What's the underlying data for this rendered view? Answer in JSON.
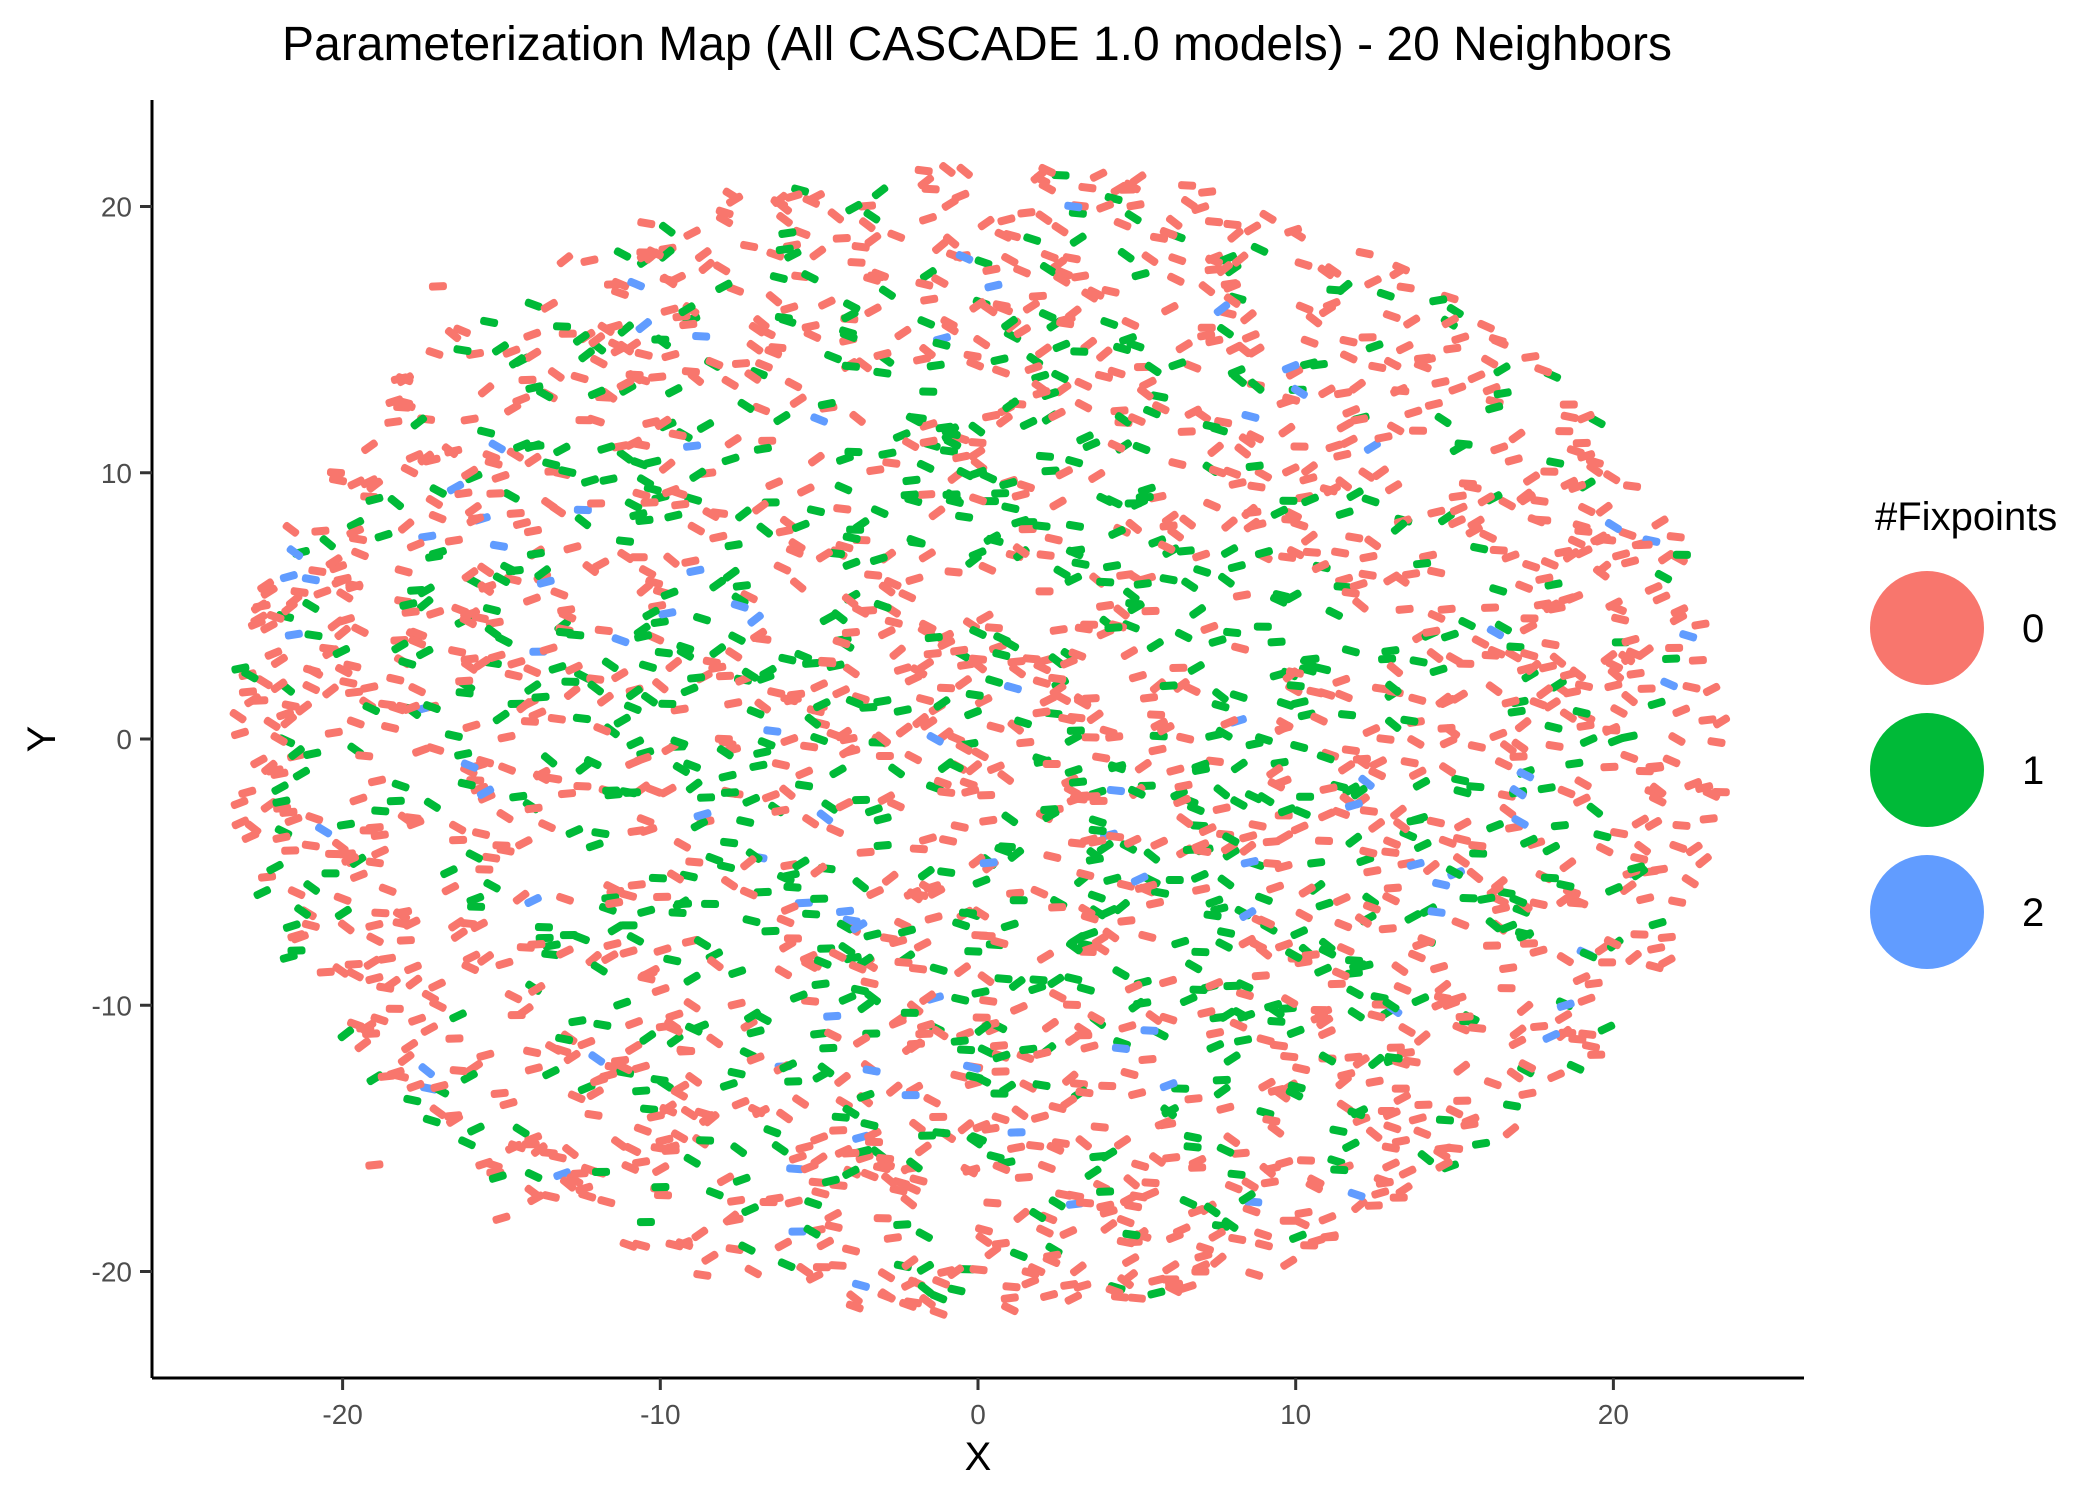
{
  "chart_data": {
    "type": "scatter",
    "title": "Parameterization Map (All CASCADE 1.0 models) - 20 Neighbors",
    "xlabel": "X",
    "ylabel": "Y",
    "xlim": [
      -26,
      26
    ],
    "ylim": [
      -24,
      24
    ],
    "x_ticks": [
      -20,
      -10,
      0,
      10,
      20
    ],
    "y_ticks": [
      -20,
      -10,
      0,
      10,
      20
    ],
    "x_tick_labels": [
      "-20",
      "-10",
      "0",
      "10",
      "20"
    ],
    "y_tick_labels": [
      "-20",
      "-10",
      "0",
      "10",
      "20"
    ],
    "grid": false,
    "legend": {
      "title": "#Fixpoints",
      "placement": "right",
      "entries": [
        {
          "label": "0",
          "color": "#F8766D"
        },
        {
          "label": "1",
          "color": "#00BA38"
        },
        {
          "label": "2",
          "color": "#619CFF"
        }
      ]
    },
    "cloud": {
      "shape": "ellipse",
      "center": [
        0.0,
        0.0
      ],
      "x_extent": [
        -23.5,
        23.5
      ],
      "y_extent": [
        -21.7,
        21.7
      ],
      "approx_shares": {
        "0": 0.62,
        "1": 0.35,
        "2": 0.03
      }
    },
    "series": [
      {
        "name": "0",
        "color": "#F8766D",
        "x": [
          -23,
          -22,
          -21,
          -20,
          -19,
          -18,
          -17,
          -16,
          -22,
          -20,
          -18,
          -16,
          -14,
          -12,
          -19,
          -17,
          -15,
          -13,
          -11,
          -9,
          -20,
          -18,
          -16,
          -13,
          -10,
          -8,
          -6,
          -4,
          -2,
          0,
          2,
          4,
          6,
          8,
          10,
          12,
          14,
          16,
          18,
          20,
          22,
          23,
          21,
          19,
          17,
          15,
          13,
          11,
          9,
          7,
          5,
          3,
          1,
          -1,
          -3,
          -5,
          -7,
          -9,
          -11,
          -13,
          -15,
          -17,
          -19,
          -21,
          1,
          3,
          5,
          7,
          9,
          11,
          13,
          15,
          17,
          19,
          2,
          4,
          6,
          8,
          -1,
          -3,
          -5,
          0,
          2
        ],
        "y": [
          -2,
          2,
          -4,
          4,
          -7,
          8,
          -10,
          10,
          0,
          -6,
          -12,
          12,
          -15,
          15,
          -16,
          17,
          -18,
          18,
          -19,
          19,
          6,
          -3,
          3,
          -8,
          2,
          0,
          -2,
          4,
          6,
          3,
          1,
          5,
          8,
          10,
          7,
          12,
          14,
          9,
          5,
          2,
          0,
          -3,
          -6,
          -9,
          -11,
          -14,
          -16,
          -18,
          -19,
          -20,
          -21,
          -21,
          -21,
          -20,
          -18,
          -15,
          -12,
          -10,
          -8,
          -6,
          -4,
          -14,
          -9,
          -7,
          18,
          16,
          12,
          -4,
          -8,
          -12,
          -6,
          3,
          -2,
          8,
          21,
          20,
          19,
          17,
          -2,
          0,
          2,
          9,
          13
        ]
      },
      {
        "name": "1",
        "color": "#00BA38",
        "x": [
          -21,
          -19,
          -17,
          -15,
          -13,
          -11,
          -9,
          -7,
          -5,
          -3,
          -1,
          1,
          3,
          5,
          7,
          9,
          11,
          13,
          15,
          17,
          19,
          -14,
          -12,
          -10,
          -8,
          -6,
          -4,
          -2,
          0,
          2,
          4,
          6,
          8,
          10,
          12,
          14,
          16,
          -11,
          -9,
          -7,
          -5,
          -3,
          -1,
          1,
          3,
          5,
          7,
          9,
          11,
          -4,
          -2,
          0,
          2,
          4,
          6,
          8,
          10,
          -6,
          -3,
          0,
          3,
          6,
          9,
          12
        ],
        "y": [
          5,
          9,
          7,
          6,
          4,
          -7,
          -9,
          -11,
          -6,
          -4,
          -5,
          -7,
          -9,
          -10,
          -8,
          -6,
          -12,
          -10,
          -5,
          -2,
          1,
          11,
          13,
          15,
          17,
          19,
          14,
          12,
          10,
          8,
          9,
          6,
          4,
          2,
          -2,
          -4,
          -6,
          -2,
          -1,
          1,
          0,
          -3,
          -1,
          -3,
          0,
          -2,
          -1,
          0,
          -8,
          -14,
          -16,
          -15,
          -13,
          -17,
          -14,
          -12,
          -11,
          3,
          5,
          4,
          6,
          2,
          7,
          -14
        ]
      },
      {
        "name": "2",
        "color": "#619CFF",
        "x": [
          -21.5,
          -21,
          -16,
          -15.5,
          -7.5,
          -7,
          -12,
          -5,
          3,
          6,
          -9,
          18.5,
          17,
          20
        ],
        "y": [
          7,
          6,
          -1,
          -2,
          5,
          4.5,
          -12,
          12,
          20,
          -13,
          11,
          -10,
          -2,
          8
        ]
      }
    ]
  }
}
